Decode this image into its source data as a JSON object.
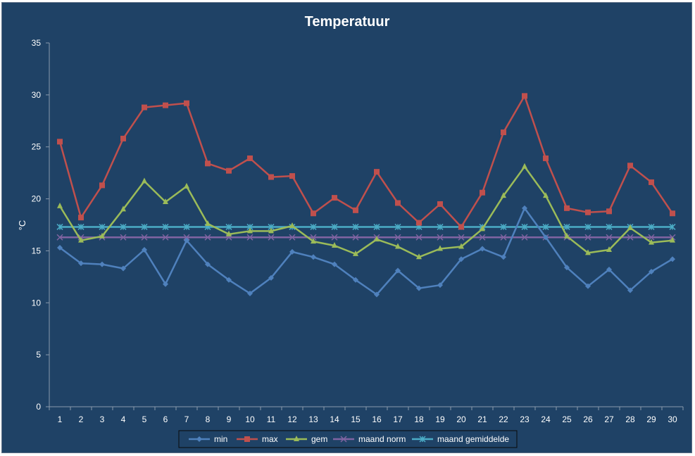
{
  "chart_data": {
    "type": "line",
    "title": "Temperatuur",
    "xlabel": "",
    "ylabel": "°C",
    "ylim": [
      0,
      35
    ],
    "yticks": [
      0,
      5,
      10,
      15,
      20,
      25,
      30,
      35
    ],
    "categories": [
      "1",
      "2",
      "3",
      "4",
      "5",
      "6",
      "7",
      "8",
      "9",
      "10",
      "11",
      "12",
      "13",
      "14",
      "15",
      "16",
      "17",
      "18",
      "19",
      "20",
      "21",
      "22",
      "23",
      "24",
      "25",
      "26",
      "27",
      "28",
      "29",
      "30"
    ],
    "grid": false,
    "legend_position": "bottom",
    "series": [
      {
        "name": "min",
        "color": "#4f81bd",
        "marker": "diamond",
        "values": [
          15.3,
          13.8,
          13.7,
          13.3,
          15.1,
          11.8,
          16.0,
          13.7,
          12.2,
          10.9,
          12.4,
          14.9,
          14.4,
          13.7,
          12.2,
          10.8,
          13.1,
          11.4,
          11.7,
          14.2,
          15.2,
          14.4,
          19.1,
          16.3,
          13.4,
          11.6,
          13.2,
          11.2,
          13.0,
          14.2
        ]
      },
      {
        "name": "max",
        "color": "#c0504d",
        "marker": "square",
        "values": [
          25.5,
          18.2,
          21.3,
          25.8,
          28.8,
          29.0,
          29.2,
          23.4,
          22.7,
          23.9,
          22.1,
          22.2,
          18.6,
          20.1,
          18.9,
          22.6,
          19.6,
          17.7,
          19.5,
          17.3,
          20.6,
          26.4,
          29.9,
          23.9,
          19.1,
          18.7,
          18.8,
          23.2,
          21.6,
          18.6
        ]
      },
      {
        "name": "gem",
        "color": "#9bbb59",
        "marker": "triangle",
        "values": [
          19.3,
          16.0,
          16.4,
          19.0,
          21.7,
          19.7,
          21.2,
          17.6,
          16.6,
          16.9,
          16.9,
          17.4,
          15.9,
          15.5,
          14.7,
          16.1,
          15.4,
          14.4,
          15.2,
          15.4,
          17.1,
          20.3,
          23.1,
          20.3,
          16.4,
          14.8,
          15.1,
          17.2,
          15.8,
          16.0
        ]
      },
      {
        "name": "maand norm",
        "color": "#8064a2",
        "marker": "x",
        "values": [
          16.3,
          16.3,
          16.3,
          16.3,
          16.3,
          16.3,
          16.3,
          16.3,
          16.3,
          16.3,
          16.3,
          16.3,
          16.3,
          16.3,
          16.3,
          16.3,
          16.3,
          16.3,
          16.3,
          16.3,
          16.3,
          16.3,
          16.3,
          16.3,
          16.3,
          16.3,
          16.3,
          16.3,
          16.3,
          16.3
        ]
      },
      {
        "name": "maand gemiddelde",
        "color": "#4bacc6",
        "marker": "star",
        "values": [
          17.3,
          17.3,
          17.3,
          17.3,
          17.3,
          17.3,
          17.3,
          17.3,
          17.3,
          17.3,
          17.3,
          17.3,
          17.3,
          17.3,
          17.3,
          17.3,
          17.3,
          17.3,
          17.3,
          17.3,
          17.3,
          17.3,
          17.3,
          17.3,
          17.3,
          17.3,
          17.3,
          17.3,
          17.3,
          17.3
        ]
      }
    ]
  }
}
